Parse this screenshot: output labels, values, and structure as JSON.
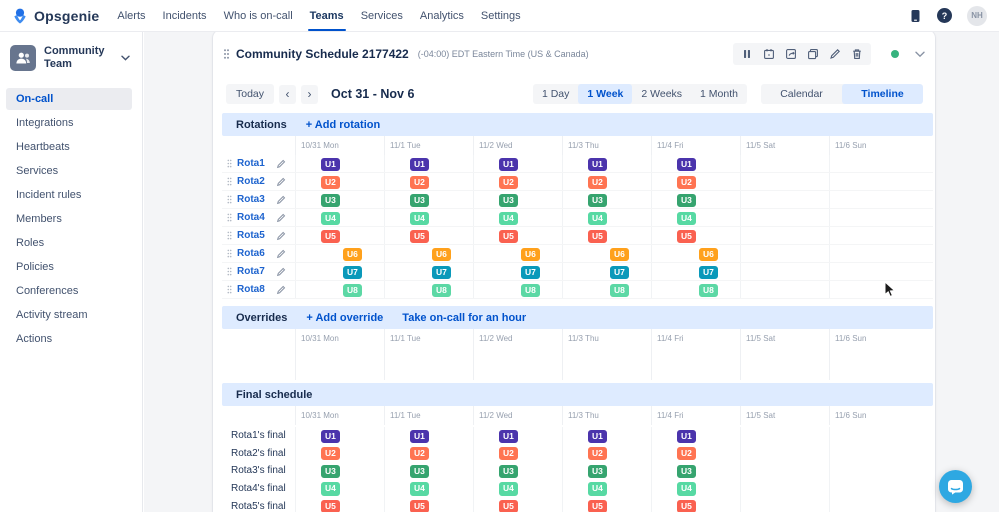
{
  "topnav": {
    "logo_text": "Opsgenie",
    "items": [
      "Alerts",
      "Incidents",
      "Who is on-call",
      "Teams",
      "Services",
      "Analytics",
      "Settings"
    ],
    "active_item": "Teams",
    "help_label": "?",
    "avatar_initials": "NH",
    "icons": [
      "mobile-app",
      "help",
      "avatar"
    ]
  },
  "sidebar": {
    "team_name": "Community Team",
    "items": [
      "On-call",
      "Integrations",
      "Heartbeats",
      "Services",
      "Incident rules",
      "Members",
      "Roles",
      "Policies",
      "Conferences",
      "Activity stream",
      "Actions"
    ],
    "active_item": "On-call"
  },
  "schedule": {
    "title": "Community Schedule 2177422",
    "timezone": "(-04:00) EDT Eastern Time (US & Canada)",
    "toolbar_icons": [
      "pause",
      "export-calendar",
      "rotate",
      "clone",
      "edit",
      "delete"
    ],
    "status_ok_color": "#36B37E",
    "today_label": "Today",
    "prev_label": "‹",
    "next_label": "›",
    "date_range": "Oct 31 - Nov 6",
    "view_options": [
      "1 Day",
      "1 Week",
      "2 Weeks",
      "1 Month"
    ],
    "active_view": "1 Week",
    "mode_options": [
      "Calendar",
      "Timeline"
    ],
    "active_mode": "Timeline",
    "days": [
      "10/31 Mon",
      "11/1 Tue",
      "11/2 Wed",
      "11/3 Thu",
      "11/4 Fri",
      "11/5 Sat",
      "11/6 Sun"
    ],
    "rotations_section": {
      "title": "Rotations",
      "add_label": "+ Add rotation"
    },
    "overrides_section": {
      "title": "Overrides",
      "add_label": "+ Add override",
      "take_label": "Take on-call for an hour"
    },
    "final_section": {
      "title": "Final schedule"
    },
    "rotations": [
      {
        "name": "Rota1",
        "badge": "U1",
        "color": "#4B34AC",
        "shifted": false,
        "days_on": [
          true,
          true,
          true,
          true,
          true,
          false,
          false
        ]
      },
      {
        "name": "Rota2",
        "badge": "U2",
        "color": "#FF7452",
        "shifted": false,
        "days_on": [
          true,
          true,
          true,
          true,
          true,
          false,
          false
        ]
      },
      {
        "name": "Rota3",
        "badge": "U3",
        "color": "#36A46F",
        "shifted": false,
        "days_on": [
          true,
          true,
          true,
          true,
          true,
          false,
          false
        ]
      },
      {
        "name": "Rota4",
        "badge": "U4",
        "color": "#57D9A3",
        "shifted": false,
        "days_on": [
          true,
          true,
          true,
          true,
          true,
          false,
          false
        ]
      },
      {
        "name": "Rota5",
        "badge": "U5",
        "color": "#FA6150",
        "shifted": false,
        "days_on": [
          true,
          true,
          true,
          true,
          true,
          false,
          false
        ]
      },
      {
        "name": "Rota6",
        "badge": "U6",
        "color": "#FFA11C",
        "shifted": true,
        "days_on": [
          true,
          true,
          true,
          true,
          true,
          false,
          false
        ]
      },
      {
        "name": "Rota7",
        "badge": "U7",
        "color": "#0A99BA",
        "shifted": true,
        "days_on": [
          true,
          true,
          true,
          true,
          true,
          false,
          false
        ]
      },
      {
        "name": "Rota8",
        "badge": "U8",
        "color": "#5CD8A5",
        "shifted": true,
        "days_on": [
          true,
          true,
          true,
          true,
          true,
          false,
          false
        ]
      }
    ],
    "final_rows": [
      {
        "label": "Rota1's final",
        "badge": "U1",
        "color": "#4B34AC",
        "days_on": [
          true,
          true,
          true,
          true,
          true,
          false,
          false
        ]
      },
      {
        "label": "Rota2's final",
        "badge": "U2",
        "color": "#FF7452",
        "days_on": [
          true,
          true,
          true,
          true,
          true,
          false,
          false
        ]
      },
      {
        "label": "Rota3's final",
        "badge": "U3",
        "color": "#36A46F",
        "days_on": [
          true,
          true,
          true,
          true,
          true,
          false,
          false
        ]
      },
      {
        "label": "Rota4's final",
        "badge": "U4",
        "color": "#57D9A3",
        "days_on": [
          true,
          true,
          true,
          true,
          true,
          false,
          false
        ]
      },
      {
        "label": "Rota5's final",
        "badge": "U5",
        "color": "#FA6150",
        "days_on": [
          true,
          true,
          true,
          true,
          true,
          false,
          false
        ]
      }
    ]
  },
  "colors": {
    "accent": "#0052CC",
    "section_header_bg": "#DEEBFF",
    "active_segment_bg": "#DEEBFF",
    "chat_button": "#2EA8E2",
    "nav_underline": "#0052CC"
  }
}
